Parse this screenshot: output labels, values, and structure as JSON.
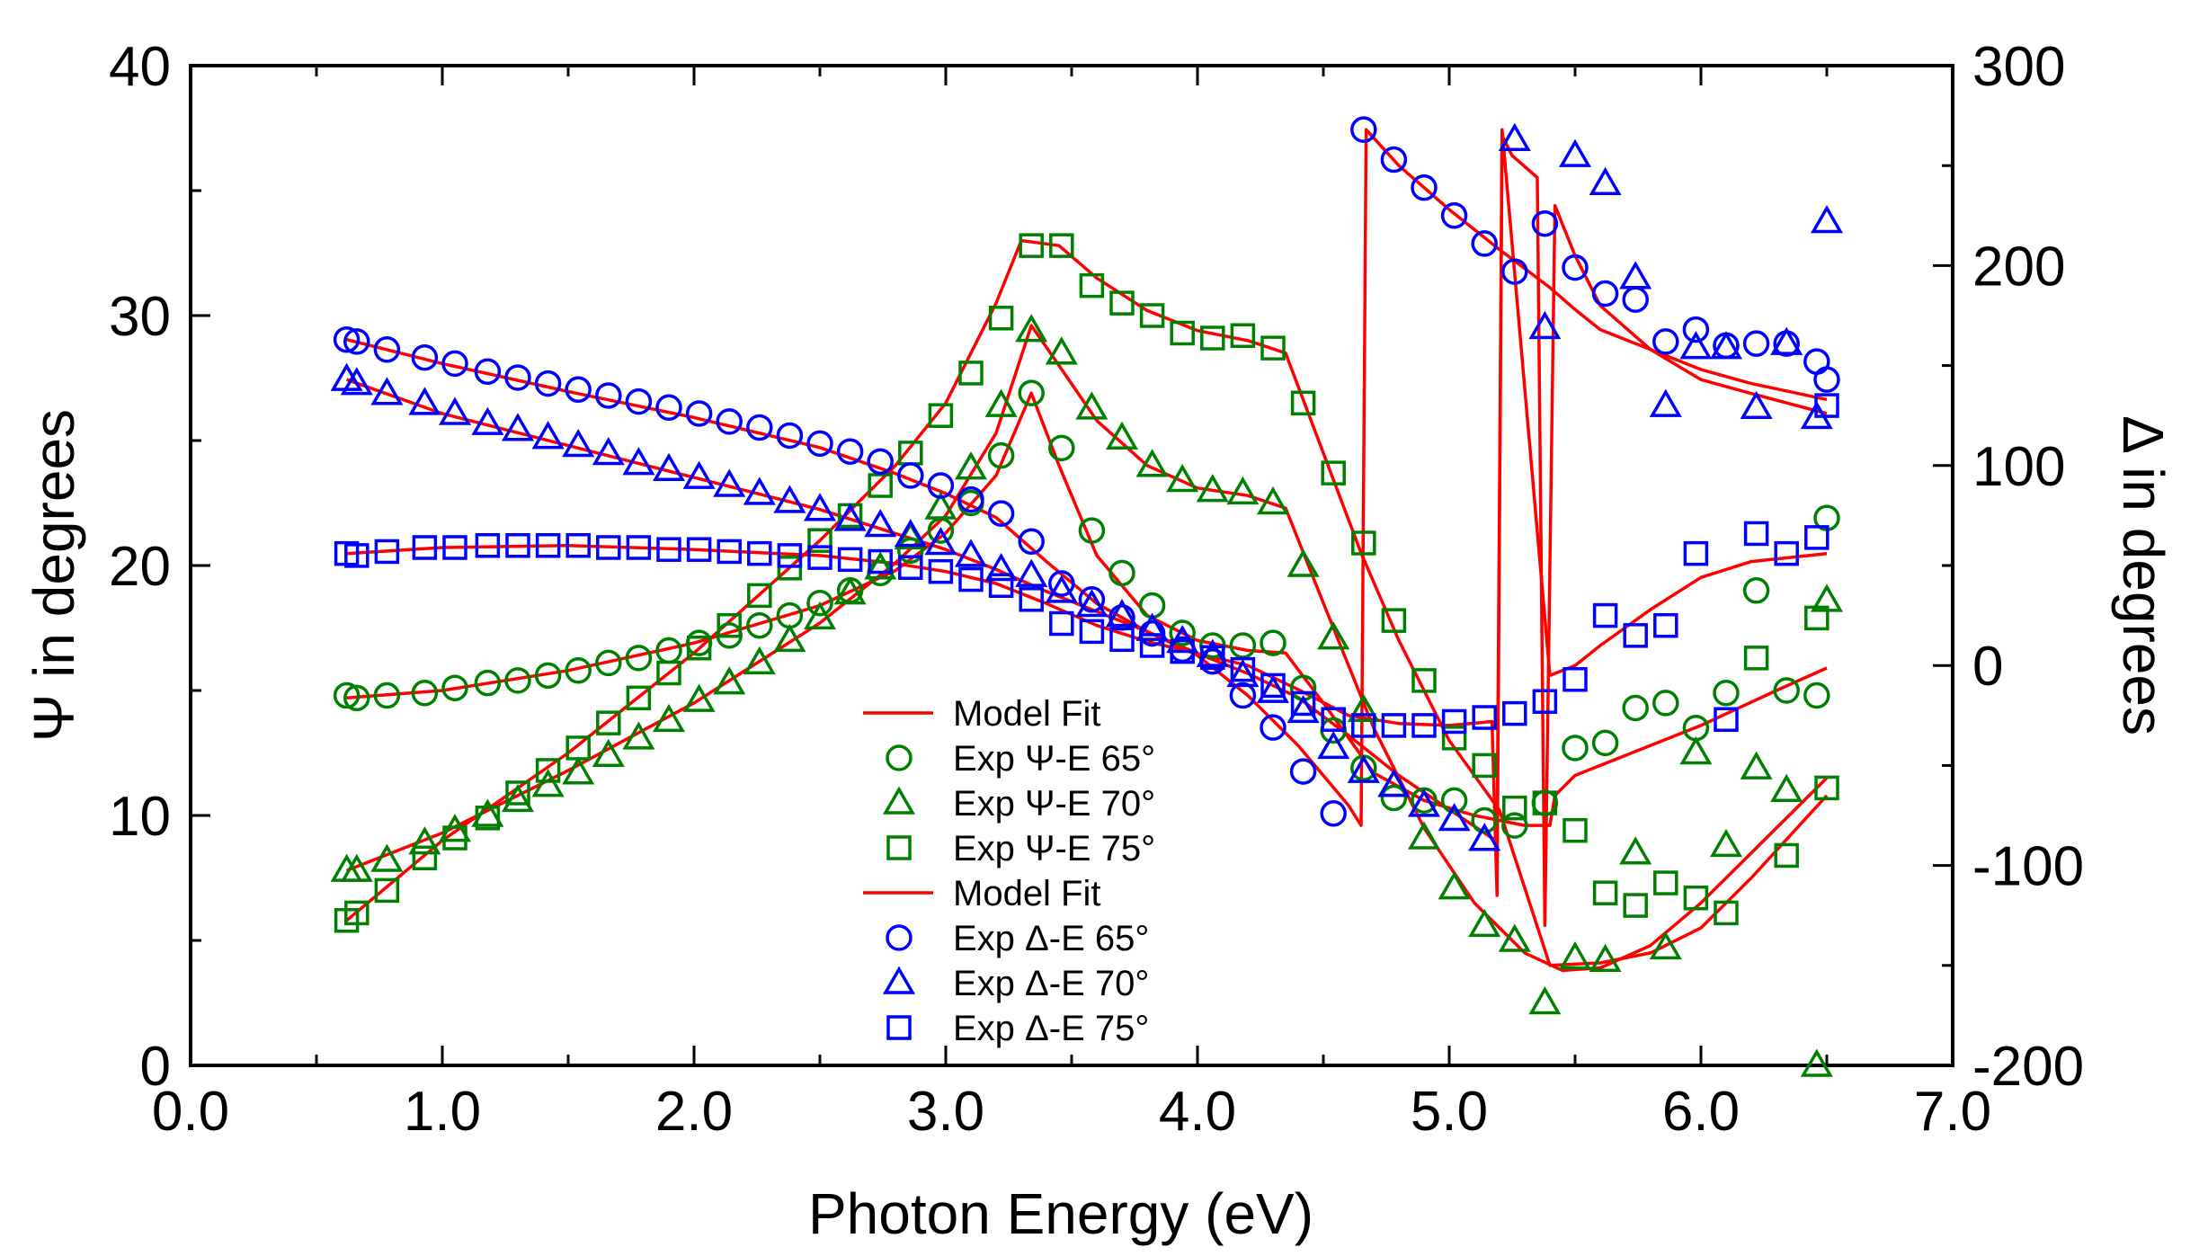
{
  "colors": {
    "fit": "#ff0000",
    "psi": "#008000",
    "delta": "#0000ff",
    "axis": "#000000"
  },
  "chart_data": {
    "type": "scatter",
    "title": "",
    "xlabel": "Photon Energy (eV)",
    "ylabel": "Ψ in degrees",
    "y2label": "Δ in degrees",
    "xlim": [
      0.0,
      7.0
    ],
    "ylim": [
      0,
      40
    ],
    "y2lim": [
      -200,
      300
    ],
    "xticks": [
      "0.0",
      "1.0",
      "2.0",
      "3.0",
      "4.0",
      "5.0",
      "6.0",
      "7.0"
    ],
    "yticks": [
      "0",
      "10",
      "20",
      "30",
      "40"
    ],
    "y2ticks": [
      "-200",
      "-100",
      "0",
      "100",
      "200",
      "300"
    ],
    "legend_position": "center",
    "legend": [
      {
        "label": "Model Fit",
        "marker": "line",
        "color": "fit"
      },
      {
        "label": "Exp Ψ-E 65°",
        "marker": "circle",
        "color": "psi"
      },
      {
        "label": "Exp Ψ-E 70°",
        "marker": "triangle",
        "color": "psi"
      },
      {
        "label": "Exp Ψ-E 75°",
        "marker": "square",
        "color": "psi"
      },
      {
        "label": "Model Fit",
        "marker": "line",
        "color": "fit"
      },
      {
        "label": "Exp Δ-E 65°",
        "marker": "circle",
        "color": "delta"
      },
      {
        "label": "Exp Δ-E 70°",
        "marker": "triangle",
        "color": "delta"
      },
      {
        "label": "Exp Δ-E 75°",
        "marker": "square",
        "color": "delta"
      }
    ],
    "series": [
      {
        "name": "Exp Ψ-E 65°",
        "axis": "left",
        "marker": "circle",
        "color": "psi",
        "x": [
          0.62,
          0.66,
          0.78,
          0.93,
          1.05,
          1.18,
          1.3,
          1.42,
          1.54,
          1.66,
          1.78,
          1.9,
          2.02,
          2.14,
          2.26,
          2.38,
          2.5,
          2.62,
          2.74,
          2.86,
          2.98,
          3.1,
          3.22,
          3.34,
          3.46,
          3.58,
          3.7,
          3.82,
          3.94,
          4.06,
          4.18,
          4.3,
          4.42,
          4.54,
          4.66,
          4.78,
          4.9,
          5.02,
          5.14,
          5.26,
          5.38,
          5.5,
          5.62,
          5.74,
          5.86,
          5.98,
          6.1,
          6.22,
          6.34,
          6.46,
          6.5
        ],
        "y": [
          14.8,
          14.7,
          14.8,
          14.9,
          15.1,
          15.3,
          15.4,
          15.6,
          15.8,
          16.1,
          16.3,
          16.6,
          16.9,
          17.2,
          17.6,
          18.0,
          18.5,
          19.0,
          19.7,
          20.6,
          21.4,
          22.5,
          24.4,
          26.9,
          24.7,
          21.4,
          19.7,
          18.4,
          17.3,
          16.8,
          16.8,
          16.9,
          15.1,
          13.4,
          11.9,
          10.7,
          10.6,
          10.6,
          9.8,
          9.6,
          10.5,
          12.7,
          12.9,
          14.3,
          14.5,
          13.5,
          14.9,
          19.0,
          15.0,
          14.8,
          21.9
        ]
      },
      {
        "name": "Exp Ψ-E 70°",
        "axis": "left",
        "marker": "triangle",
        "color": "psi",
        "x": [
          0.62,
          0.66,
          0.78,
          0.93,
          1.05,
          1.18,
          1.3,
          1.42,
          1.54,
          1.66,
          1.78,
          1.9,
          2.02,
          2.14,
          2.26,
          2.38,
          2.5,
          2.62,
          2.74,
          2.86,
          2.98,
          3.1,
          3.22,
          3.34,
          3.46,
          3.58,
          3.7,
          3.82,
          3.94,
          4.06,
          4.18,
          4.3,
          4.42,
          4.54,
          4.66,
          4.78,
          4.9,
          5.02,
          5.14,
          5.26,
          5.38,
          5.5,
          5.62,
          5.74,
          5.86,
          5.98,
          6.1,
          6.22,
          6.34,
          6.46,
          6.5
        ],
        "y": [
          7.8,
          7.8,
          8.2,
          8.9,
          9.4,
          10.0,
          10.6,
          11.2,
          11.7,
          12.4,
          13.1,
          13.8,
          14.6,
          15.3,
          16.1,
          17.0,
          17.9,
          18.9,
          19.9,
          21.1,
          22.3,
          23.9,
          26.4,
          29.4,
          28.5,
          26.3,
          25.1,
          24.0,
          23.4,
          23.0,
          22.9,
          22.5,
          20.0,
          17.1,
          14.2,
          11.2,
          9.1,
          7.1,
          5.6,
          5.0,
          2.5,
          4.3,
          4.2,
          8.5,
          4.7,
          12.5,
          8.8,
          11.9,
          11.0,
          0.0,
          18.6
        ]
      },
      {
        "name": "Exp Ψ-E 75°",
        "axis": "left",
        "marker": "square",
        "color": "psi",
        "x": [
          0.62,
          0.66,
          0.78,
          0.93,
          1.05,
          1.18,
          1.3,
          1.42,
          1.54,
          1.66,
          1.78,
          1.9,
          2.02,
          2.14,
          2.26,
          2.38,
          2.5,
          2.62,
          2.74,
          2.86,
          2.98,
          3.1,
          3.22,
          3.34,
          3.46,
          3.58,
          3.7,
          3.82,
          3.94,
          4.06,
          4.18,
          4.3,
          4.42,
          4.54,
          4.66,
          4.78,
          4.9,
          5.02,
          5.14,
          5.26,
          5.38,
          5.5,
          5.62,
          5.74,
          5.86,
          5.98,
          6.1,
          6.22,
          6.34,
          6.46,
          6.5
        ],
        "y": [
          5.8,
          6.1,
          7.0,
          8.3,
          9.1,
          9.9,
          10.9,
          11.8,
          12.7,
          13.7,
          14.7,
          15.7,
          16.7,
          17.6,
          18.8,
          19.9,
          21.0,
          22.0,
          23.2,
          24.5,
          26.0,
          27.7,
          29.9,
          32.8,
          32.8,
          31.2,
          30.5,
          30.0,
          29.3,
          29.1,
          29.2,
          28.7,
          26.5,
          23.7,
          20.9,
          17.8,
          15.4,
          13.1,
          12.0,
          10.3,
          10.5,
          9.4,
          6.9,
          6.4,
          7.3,
          6.7,
          6.1,
          16.3,
          8.4,
          17.9,
          11.1
        ]
      },
      {
        "name": "Exp Δ-E 65°",
        "axis": "right",
        "marker": "circle",
        "color": "delta",
        "x": [
          0.62,
          0.66,
          0.78,
          0.93,
          1.05,
          1.18,
          1.3,
          1.42,
          1.54,
          1.66,
          1.78,
          1.9,
          2.02,
          2.14,
          2.26,
          2.38,
          2.5,
          2.62,
          2.74,
          2.86,
          2.98,
          3.1,
          3.22,
          3.34,
          3.46,
          3.58,
          3.7,
          3.82,
          3.94,
          4.06,
          4.18,
          4.3,
          4.42,
          4.54,
          4.66,
          4.78,
          4.9,
          5.02,
          5.14,
          5.26,
          5.38,
          5.5,
          5.62,
          5.74,
          5.86,
          5.98,
          6.1,
          6.22,
          6.34,
          6.46,
          6.5
        ],
        "y": [
          163,
          162,
          158,
          154,
          151,
          147,
          144,
          141,
          138,
          135,
          132,
          129,
          126,
          122,
          119,
          115,
          111,
          107,
          102,
          95,
          90,
          83,
          76,
          62,
          41,
          33,
          24,
          16,
          8,
          2,
          -15,
          -31,
          -53,
          -74,
          268,
          253,
          239,
          225,
          211,
          197,
          221,
          199,
          186,
          183,
          162,
          168,
          160,
          161,
          161,
          152,
          143
        ]
      },
      {
        "name": "Exp Δ-E 70°",
        "axis": "right",
        "marker": "triangle",
        "color": "delta",
        "x": [
          0.62,
          0.66,
          0.78,
          0.93,
          1.05,
          1.18,
          1.3,
          1.42,
          1.54,
          1.66,
          1.78,
          1.9,
          2.02,
          2.14,
          2.26,
          2.38,
          2.5,
          2.62,
          2.74,
          2.86,
          2.98,
          3.1,
          3.22,
          3.34,
          3.46,
          3.58,
          3.7,
          3.82,
          3.94,
          4.06,
          4.18,
          4.3,
          4.42,
          4.54,
          4.66,
          4.78,
          4.9,
          5.02,
          5.14,
          5.26,
          5.38,
          5.5,
          5.62,
          5.74,
          5.86,
          5.98,
          6.1,
          6.22,
          6.34,
          6.46,
          6.5
        ],
        "y": [
          143,
          141,
          136,
          131,
          126,
          121,
          118,
          114,
          110,
          106,
          101,
          98,
          94,
          90,
          86,
          82,
          78,
          73,
          70,
          65,
          61,
          55,
          48,
          45,
          37,
          30,
          25,
          18,
          12,
          5,
          -5,
          -13,
          -23,
          -41,
          -53,
          -60,
          -70,
          -77,
          -87,
          263,
          169,
          255,
          241,
          194,
          130,
          159,
          159,
          129,
          161,
          124,
          222
        ]
      },
      {
        "name": "Exp Δ-E 75°",
        "axis": "right",
        "marker": "square",
        "color": "delta",
        "x": [
          0.62,
          0.66,
          0.78,
          0.93,
          1.05,
          1.18,
          1.3,
          1.42,
          1.54,
          1.66,
          1.78,
          1.9,
          2.02,
          2.14,
          2.26,
          2.38,
          2.5,
          2.62,
          2.74,
          2.86,
          2.98,
          3.1,
          3.22,
          3.34,
          3.46,
          3.58,
          3.7,
          3.82,
          3.94,
          4.06,
          4.18,
          4.3,
          4.42,
          4.54,
          4.66,
          4.78,
          4.9,
          5.02,
          5.14,
          5.26,
          5.38,
          5.5,
          5.62,
          5.74,
          5.86,
          5.98,
          6.1,
          6.22,
          6.34,
          6.46,
          6.5
        ],
        "y": [
          56,
          55,
          57,
          59,
          59,
          60,
          60,
          60,
          60,
          59,
          59,
          58,
          58,
          57,
          56,
          55,
          54,
          53,
          52,
          49,
          47,
          43,
          40,
          33,
          21,
          17,
          13,
          10,
          7,
          4,
          -2,
          -10,
          -19,
          -27,
          -30,
          -30,
          -30,
          -28,
          -26,
          -24,
          -18,
          -7,
          25,
          15,
          20,
          56,
          -27,
          66,
          56,
          64,
          130
        ]
      }
    ],
    "fit_lines": [
      {
        "name": "Model Fit Ψ 65°",
        "axis": "left",
        "x": [
          0.62,
          1.0,
          1.5,
          2.0,
          2.5,
          2.8,
          3.0,
          3.2,
          3.34,
          3.45,
          3.6,
          3.8,
          4.0,
          4.2,
          4.35,
          4.5,
          4.7,
          4.9,
          5.1,
          5.3,
          5.4,
          5.42,
          5.5,
          5.7,
          6.0,
          6.3,
          6.5
        ],
        "y": [
          14.7,
          15.0,
          15.8,
          16.9,
          18.4,
          19.8,
          21.3,
          23.6,
          26.9,
          24.0,
          20.4,
          18.0,
          17.0,
          16.6,
          16.5,
          14.5,
          11.7,
          10.6,
          10.0,
          9.6,
          9.6,
          10.8,
          11.6,
          12.4,
          13.6,
          15.0,
          15.9
        ]
      },
      {
        "name": "Model Fit Ψ 70°",
        "axis": "left",
        "x": [
          0.62,
          1.0,
          1.5,
          2.0,
          2.5,
          2.8,
          3.0,
          3.2,
          3.34,
          3.45,
          3.6,
          3.8,
          4.0,
          4.2,
          4.35,
          4.5,
          4.7,
          4.9,
          5.1,
          5.3,
          5.45,
          5.6,
          5.8,
          6.0,
          6.2,
          6.5
        ],
        "y": [
          7.8,
          9.3,
          11.8,
          14.5,
          17.7,
          20.1,
          22.0,
          25.3,
          29.6,
          28.0,
          25.8,
          24.0,
          23.1,
          22.8,
          22.3,
          18.5,
          13.5,
          9.5,
          6.5,
          4.5,
          3.8,
          3.9,
          4.8,
          6.5,
          8.5,
          11.5
        ]
      },
      {
        "name": "Model Fit Ψ 75°",
        "axis": "left",
        "x": [
          0.62,
          1.0,
          1.5,
          2.0,
          2.5,
          2.8,
          3.0,
          3.2,
          3.3,
          3.45,
          3.6,
          3.8,
          4.0,
          4.2,
          4.35,
          4.5,
          4.65,
          4.8,
          5.0,
          5.2,
          5.4,
          5.6,
          5.8,
          6.0,
          6.2,
          6.5
        ],
        "y": [
          5.8,
          9.0,
          12.5,
          16.5,
          21.0,
          24.0,
          26.5,
          30.5,
          33.0,
          32.8,
          31.5,
          30.2,
          29.4,
          29.0,
          28.5,
          24.5,
          20.5,
          17.0,
          13.0,
          10.2,
          4.0,
          4.1,
          4.5,
          5.5,
          7.5,
          10.8
        ]
      },
      {
        "name": "Model Fit Δ 65°",
        "axis": "right",
        "x": [
          0.62,
          1.0,
          1.5,
          2.0,
          2.5,
          2.8,
          3.0,
          3.2,
          3.4,
          3.6,
          3.8,
          4.0,
          4.2,
          4.4,
          4.6,
          4.65,
          4.67,
          4.8,
          5.0,
          5.2,
          5.4,
          5.5,
          5.6,
          5.8,
          6.0,
          6.2,
          6.5
        ],
        "y": [
          163,
          151,
          137,
          124,
          109,
          96,
          86,
          74,
          52,
          31,
          17,
          5,
          -15,
          -40,
          -70,
          -80,
          268,
          250,
          228,
          208,
          189,
          178,
          168,
          158,
          148,
          141,
          133
        ]
      },
      {
        "name": "Model Fit Δ 70°",
        "axis": "right",
        "x": [
          0.62,
          1.0,
          1.5,
          2.0,
          2.5,
          2.8,
          3.0,
          3.2,
          3.4,
          3.6,
          3.8,
          4.0,
          4.2,
          4.4,
          4.6,
          4.8,
          5.0,
          5.19,
          5.21,
          5.25,
          5.35,
          5.38,
          5.42,
          5.5,
          5.6,
          5.8,
          6.0,
          6.2,
          6.5
        ],
        "y": [
          143,
          126,
          110,
          94,
          78,
          66,
          58,
          48,
          37,
          27,
          17,
          6,
          -4,
          -16,
          -35,
          -55,
          -72,
          -88,
          265,
          255,
          244,
          -130,
          230,
          205,
          180,
          158,
          143,
          136,
          126
        ]
      },
      {
        "name": "Model Fit Δ 75°",
        "axis": "right",
        "x": [
          0.62,
          1.0,
          1.5,
          2.0,
          2.5,
          2.8,
          3.0,
          3.2,
          3.4,
          3.6,
          3.8,
          4.0,
          4.2,
          4.4,
          4.6,
          4.8,
          5.0,
          5.17,
          5.19,
          5.21,
          5.4,
          5.5,
          5.6,
          5.8,
          6.0,
          6.2,
          6.5
        ],
        "y": [
          56,
          59,
          60,
          58,
          55,
          51,
          47,
          41,
          31,
          20,
          12,
          6,
          0,
          -12,
          -25,
          -29,
          -30,
          -28,
          -115,
          268,
          -5,
          0,
          10,
          28,
          44,
          52,
          56
        ]
      }
    ]
  }
}
